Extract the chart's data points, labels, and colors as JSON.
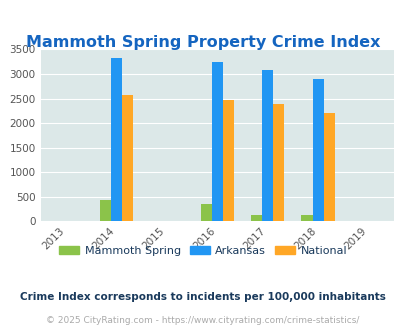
{
  "title": "Mammoth Spring Property Crime Index",
  "years": [
    2013,
    2014,
    2015,
    2016,
    2017,
    2018,
    2019
  ],
  "data_years": [
    2014,
    2016,
    2017,
    2018
  ],
  "mammoth_spring": [
    425,
    340,
    120,
    120
  ],
  "arkansas": [
    3320,
    3240,
    3080,
    2900
  ],
  "national": [
    2580,
    2460,
    2380,
    2200
  ],
  "colors": {
    "mammoth_spring": "#8bc34a",
    "arkansas": "#2196f3",
    "national": "#ffa726"
  },
  "ylim": [
    0,
    3500
  ],
  "yticks": [
    0,
    500,
    1000,
    1500,
    2000,
    2500,
    3000,
    3500
  ],
  "background_color": "#dce8e8",
  "title_color": "#1565c0",
  "title_fontsize": 11.5,
  "bar_width": 0.22,
  "legend_labels": [
    "Mammoth Spring",
    "Arkansas",
    "National"
  ],
  "footnote1": "Crime Index corresponds to incidents per 100,000 inhabitants",
  "footnote2": "© 2025 CityRating.com - https://www.cityrating.com/crime-statistics/",
  "footnote1_color": "#1a3a5c",
  "footnote2_color": "#aaaaaa"
}
